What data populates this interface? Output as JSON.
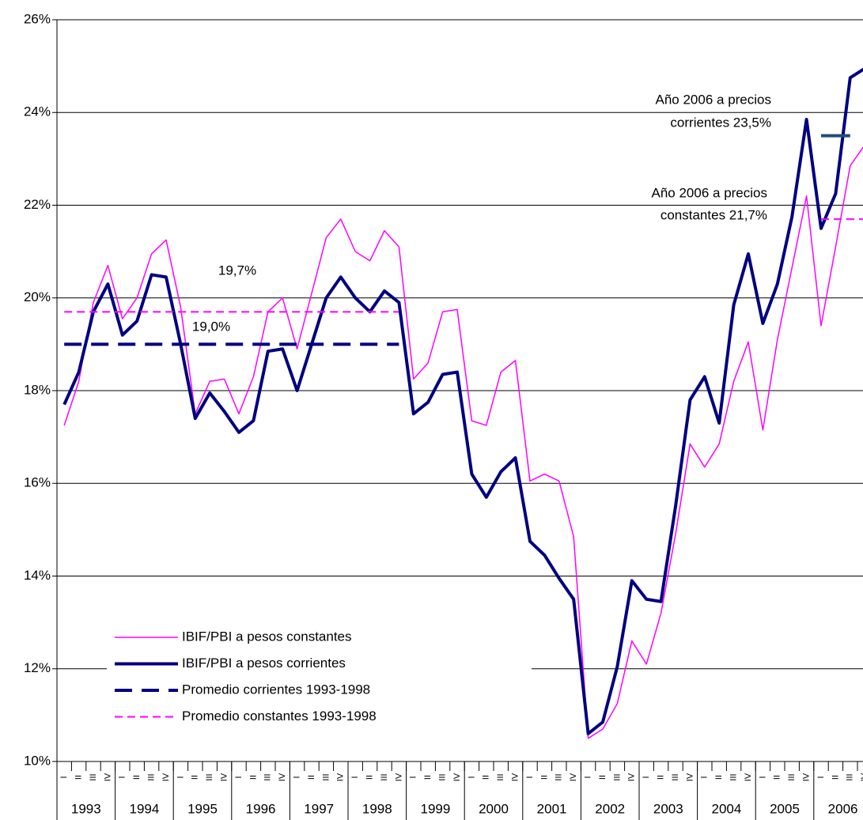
{
  "chart_data": {
    "type": "line",
    "categories": [
      "I",
      "II",
      "III",
      "IV",
      "I",
      "II",
      "III",
      "IV",
      "I",
      "II",
      "III",
      "IV",
      "I",
      "II",
      "III",
      "IV",
      "I",
      "II",
      "III",
      "IV",
      "I",
      "II",
      "III",
      "IV",
      "I",
      "II",
      "III",
      "IV",
      "I",
      "II",
      "III",
      "IV",
      "I",
      "II",
      "III",
      "IV",
      "I",
      "II",
      "III",
      "IV",
      "I",
      "II",
      "III",
      "IV",
      "I",
      "II",
      "III",
      "IV",
      "I",
      "II",
      "III",
      "IV",
      "I",
      "II",
      "III",
      "IV"
    ],
    "years": [
      "1993",
      "1994",
      "1995",
      "1996",
      "1997",
      "1998",
      "1999",
      "2000",
      "2001",
      "2002",
      "2003",
      "2004",
      "2005",
      "2006"
    ],
    "ylim": [
      10,
      26
    ],
    "yticks": [
      {
        "value": 10,
        "label": "10%"
      },
      {
        "value": 12,
        "label": "12%"
      },
      {
        "value": 14,
        "label": "14%"
      },
      {
        "value": 16,
        "label": "16%"
      },
      {
        "value": 18,
        "label": "18%"
      },
      {
        "value": 20,
        "label": "20%"
      },
      {
        "value": 22,
        "label": "22%"
      },
      {
        "value": 24,
        "label": "24%"
      },
      {
        "value": 26,
        "label": "26%"
      }
    ],
    "grid": true,
    "series": [
      {
        "name": "IBIF/PBI a pesos constantes",
        "color": "#ff00ff",
        "width": 1.5,
        "values": [
          17.25,
          18.2,
          19.9,
          20.7,
          19.55,
          20.0,
          20.95,
          21.25,
          19.8,
          17.5,
          18.2,
          18.25,
          17.5,
          18.3,
          19.7,
          20.0,
          18.9,
          20.1,
          21.3,
          21.7,
          21.0,
          20.8,
          21.45,
          21.1,
          18.25,
          18.6,
          19.7,
          19.75,
          17.35,
          17.25,
          18.4,
          18.65,
          16.05,
          16.2,
          16.05,
          14.85,
          10.5,
          10.7,
          11.25,
          12.6,
          12.1,
          13.2,
          14.9,
          16.85,
          16.35,
          16.85,
          18.2,
          19.05,
          17.15,
          19.1,
          20.65,
          22.2,
          19.4,
          21.1,
          22.85,
          23.3
        ]
      },
      {
        "name": "IBIF/PBI a pesos corrientes",
        "color": "#000080",
        "width": 4,
        "values": [
          17.7,
          18.4,
          19.7,
          20.3,
          19.2,
          19.5,
          20.5,
          20.45,
          19.0,
          17.4,
          17.95,
          17.55,
          17.1,
          17.35,
          18.85,
          18.9,
          18.0,
          19.0,
          20.0,
          20.45,
          20.0,
          19.7,
          20.15,
          19.9,
          17.5,
          17.75,
          18.35,
          18.4,
          16.2,
          15.7,
          16.25,
          16.55,
          14.75,
          14.45,
          13.95,
          13.5,
          10.6,
          10.85,
          12.05,
          13.9,
          13.5,
          13.45,
          15.5,
          17.8,
          18.3,
          17.3,
          19.85,
          20.95,
          19.45,
          20.3,
          21.75,
          23.85,
          21.5,
          22.25,
          24.75,
          24.95
        ]
      },
      {
        "name": "Promedio  corrientes 1993-1998",
        "color": "#000080",
        "width": 4,
        "dashed": true,
        "values": [
          19.0,
          19.0,
          19.0,
          19.0,
          19.0,
          19.0,
          19.0,
          19.0,
          19.0,
          19.0,
          19.0,
          19.0,
          19.0,
          19.0,
          19.0,
          19.0,
          19.0,
          19.0,
          19.0,
          19.0,
          19.0,
          19.0,
          19.0,
          19.0,
          null,
          null,
          null,
          null,
          null,
          null,
          null,
          null,
          null,
          null,
          null,
          null,
          null,
          null,
          null,
          null,
          null,
          null,
          null,
          null,
          null,
          null,
          null,
          null,
          null,
          null,
          null,
          null,
          null,
          null,
          null,
          null
        ]
      },
      {
        "name": "Promedio constantes 1993-1998",
        "color": "#ff00ff",
        "width": 2,
        "dashed": true,
        "values": [
          19.7,
          19.7,
          19.7,
          19.7,
          19.7,
          19.7,
          19.7,
          19.7,
          19.7,
          19.7,
          19.7,
          19.7,
          19.7,
          19.7,
          19.7,
          19.7,
          19.7,
          19.7,
          19.7,
          19.7,
          19.7,
          19.7,
          19.7,
          19.7,
          null,
          null,
          null,
          null,
          null,
          null,
          null,
          null,
          null,
          null,
          null,
          null,
          null,
          null,
          null,
          null,
          null,
          null,
          null,
          null,
          null,
          null,
          null,
          null,
          null,
          null,
          null,
          null,
          null,
          null,
          null,
          null
        ]
      },
      {
        "color": "#1f4e79",
        "width": 4,
        "values": [
          null,
          null,
          null,
          null,
          null,
          null,
          null,
          null,
          null,
          null,
          null,
          null,
          null,
          null,
          null,
          null,
          null,
          null,
          null,
          null,
          null,
          null,
          null,
          null,
          null,
          null,
          null,
          null,
          null,
          null,
          null,
          null,
          null,
          null,
          null,
          null,
          null,
          null,
          null,
          null,
          null,
          null,
          null,
          null,
          null,
          null,
          null,
          null,
          null,
          null,
          null,
          null,
          23.5,
          23.5,
          23.5,
          null
        ]
      },
      {
        "color": "#ff00ff",
        "width": 2,
        "dashed": true,
        "values": [
          null,
          null,
          null,
          null,
          null,
          null,
          null,
          null,
          null,
          null,
          null,
          null,
          null,
          null,
          null,
          null,
          null,
          null,
          null,
          null,
          null,
          null,
          null,
          null,
          null,
          null,
          null,
          null,
          null,
          null,
          null,
          null,
          null,
          null,
          null,
          null,
          null,
          null,
          null,
          null,
          null,
          null,
          null,
          null,
          null,
          null,
          null,
          null,
          null,
          null,
          null,
          null,
          21.7,
          21.7,
          21.7,
          21.7
        ]
      }
    ],
    "annotations": [
      "19,7%",
      "19,0%",
      "Año 2006 a precios",
      "corrientes 23,5%",
      "Año 2006 a precios",
      "constantes 21,7%"
    ]
  }
}
